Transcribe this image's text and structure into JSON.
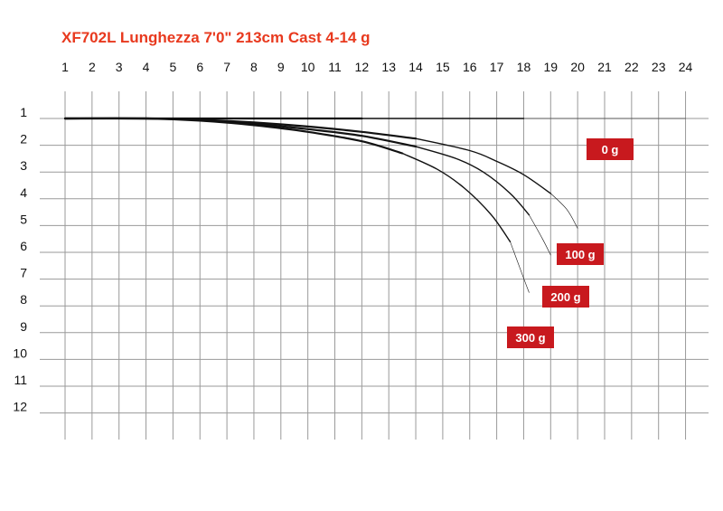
{
  "chart_data": {
    "type": "line",
    "title": "XF702L Lunghezza 7'0\" 213cm Cast 4-14 g",
    "xlabel": "",
    "ylabel": "",
    "x_ticks": [
      "1",
      "2",
      "3",
      "4",
      "5",
      "6",
      "7",
      "8",
      "9",
      "10",
      "11",
      "12",
      "13",
      "14",
      "15",
      "16",
      "17",
      "18",
      "19",
      "20",
      "21",
      "22",
      "23",
      "24"
    ],
    "y_ticks": [
      "1",
      "2",
      "3",
      "4",
      "5",
      "6",
      "7",
      "8",
      "9",
      "10",
      "11",
      "12"
    ],
    "xlim": [
      1,
      24
    ],
    "ylim": [
      1,
      12
    ],
    "grid": true,
    "legend": "none",
    "series": [
      {
        "name": "0 g",
        "x": [
          1,
          6,
          12,
          18,
          24
        ],
        "y": [
          1.0,
          1.0,
          1.0,
          1.0,
          1.0
        ]
      },
      {
        "name": "100 g",
        "x": [
          1,
          4,
          6,
          8,
          10,
          12,
          14,
          16,
          17,
          18,
          19,
          19.6,
          20
        ],
        "y": [
          1.0,
          1.0,
          1.05,
          1.15,
          1.3,
          1.5,
          1.75,
          2.2,
          2.6,
          3.1,
          3.8,
          4.4,
          5.1
        ]
      },
      {
        "name": "200 g",
        "x": [
          1,
          4,
          6,
          8,
          10,
          12,
          14,
          15.5,
          16.5,
          17.5,
          18.2,
          18.7,
          19
        ],
        "y": [
          1.0,
          1.0,
          1.06,
          1.2,
          1.4,
          1.65,
          2.05,
          2.5,
          3.0,
          3.8,
          4.6,
          5.5,
          6.1
        ]
      },
      {
        "name": "300 g",
        "x": [
          1,
          4,
          6,
          8,
          10,
          12,
          13.5,
          14.8,
          15.8,
          16.8,
          17.5,
          17.9,
          18.2
        ],
        "y": [
          1.0,
          1.0,
          1.08,
          1.25,
          1.5,
          1.85,
          2.3,
          2.9,
          3.6,
          4.6,
          5.6,
          6.7,
          7.5
        ]
      }
    ],
    "colors": {
      "title": "#e8391e",
      "grid": "#9a9a9a",
      "curve": "#111111",
      "label_bg": "#c8191e",
      "label_text": "#ffffff"
    }
  }
}
